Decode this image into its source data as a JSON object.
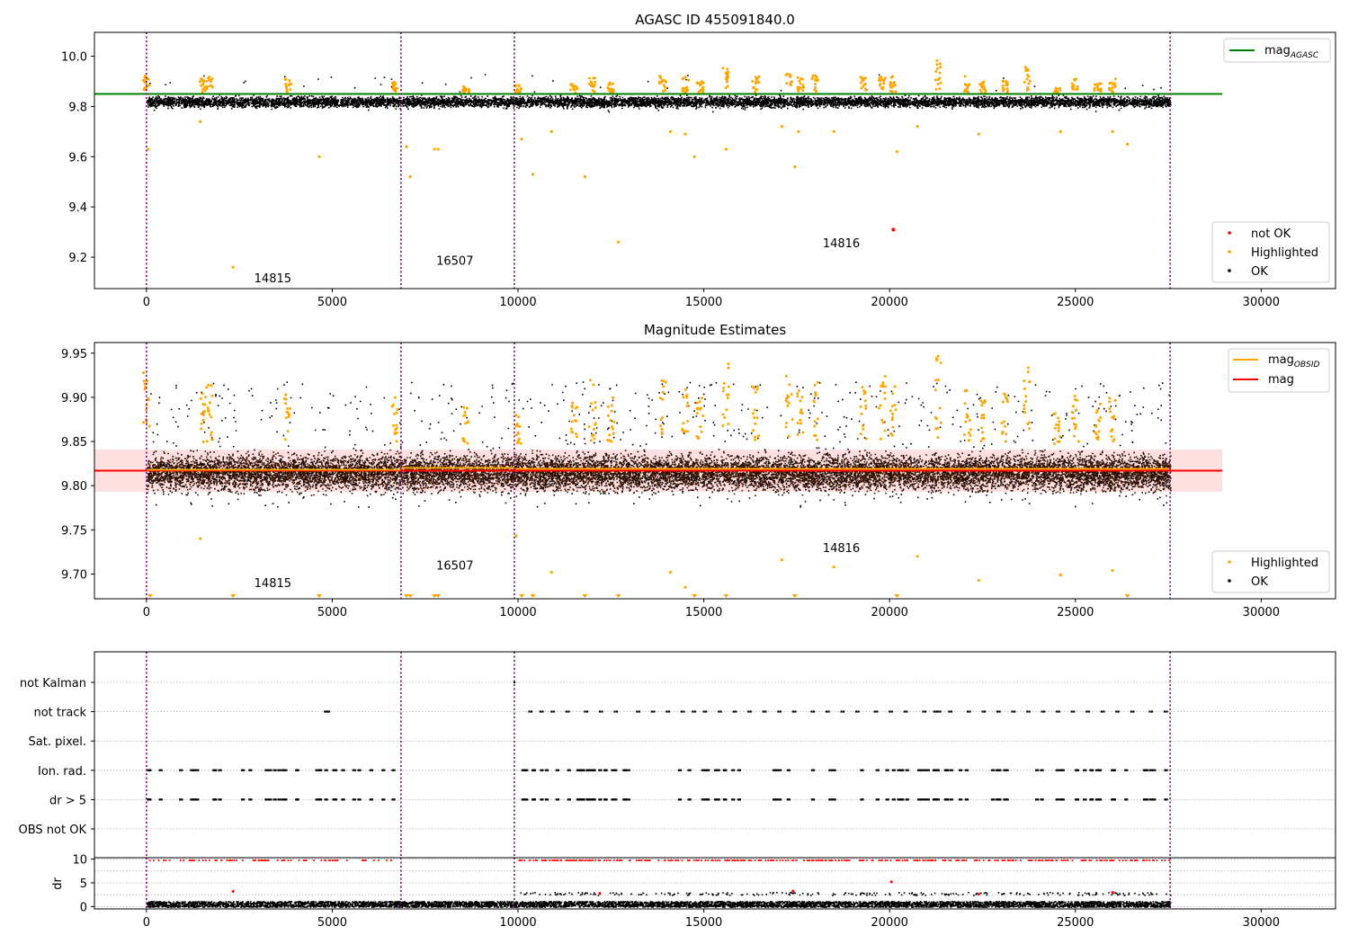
{
  "chart_data": [
    {
      "type": "scatter",
      "title": "AGASC ID 455091840.0",
      "xlim": [
        -1400,
        32000
      ],
      "ylim": [
        9.075,
        10.095
      ],
      "xticks": [
        0,
        5000,
        10000,
        15000,
        20000,
        25000,
        30000
      ],
      "yticks": [
        9.2,
        9.4,
        9.6,
        9.8,
        10.0
      ],
      "ytick_labels": [
        "9.2",
        "9.4",
        "9.6",
        "9.8",
        "10.0"
      ],
      "vlines": [
        0,
        6850,
        9900,
        27550
      ],
      "hline": {
        "y": 9.85,
        "x_range": [
          -1400,
          28950
        ],
        "color": "#008000"
      },
      "legend_upper": [
        {
          "label": "mag",
          "sub": "AGASC",
          "color": "#008000"
        }
      ],
      "legend_lower": [
        {
          "label": "not OK",
          "color": "#ff0000"
        },
        {
          "label": "Highlighted",
          "color": "#ffa500"
        },
        {
          "label": "OK",
          "color": "#000000"
        }
      ],
      "obsid_labels": [
        {
          "text": "14815",
          "x": 2900,
          "y": 9.1
        },
        {
          "text": "16507",
          "x": 7800,
          "y": 9.17
        },
        {
          "text": "14816",
          "x": 18200,
          "y": 9.24
        }
      ],
      "band": {
        "center": 9.82,
        "spread": 0.03
      },
      "red_points": [
        [
          20100,
          9.31
        ]
      ],
      "orange_outliers": [
        [
          50,
          9.63
        ],
        [
          1450,
          9.74
        ],
        [
          2330,
          9.16
        ],
        [
          4650,
          9.6
        ],
        [
          7000,
          9.64
        ],
        [
          7100,
          9.52
        ],
        [
          7750,
          9.63
        ],
        [
          7850,
          9.63
        ],
        [
          10100,
          9.67
        ],
        [
          10400,
          9.53
        ],
        [
          10900,
          9.7
        ],
        [
          11800,
          9.52
        ],
        [
          12700,
          9.26
        ],
        [
          14100,
          9.7
        ],
        [
          14500,
          9.69
        ],
        [
          14750,
          9.6
        ],
        [
          15600,
          9.63
        ],
        [
          17100,
          9.72
        ],
        [
          17450,
          9.56
        ],
        [
          17550,
          9.7
        ],
        [
          18500,
          9.7
        ],
        [
          20200,
          9.62
        ],
        [
          20750,
          9.72
        ],
        [
          22400,
          9.69
        ],
        [
          24600,
          9.7
        ],
        [
          26000,
          9.7
        ],
        [
          26400,
          9.65
        ]
      ],
      "orange_clusters": [
        [
          0,
          9.93
        ],
        [
          1500,
          9.91
        ],
        [
          1700,
          9.92
        ],
        [
          3800,
          9.91
        ],
        [
          6700,
          9.9
        ],
        [
          8600,
          9.88
        ],
        [
          10000,
          9.89
        ],
        [
          11500,
          9.89
        ],
        [
          12000,
          9.92
        ],
        [
          12500,
          9.9
        ],
        [
          13900,
          9.93
        ],
        [
          14500,
          9.92
        ],
        [
          14900,
          9.9
        ],
        [
          15600,
          9.97
        ],
        [
          16400,
          9.92
        ],
        [
          17300,
          9.93
        ],
        [
          17600,
          9.92
        ],
        [
          18000,
          9.93
        ],
        [
          19300,
          9.92
        ],
        [
          19800,
          9.93
        ],
        [
          20100,
          9.92
        ],
        [
          21300,
          9.99
        ],
        [
          22100,
          9.92
        ],
        [
          22500,
          9.9
        ],
        [
          23100,
          9.91
        ],
        [
          23700,
          9.96
        ],
        [
          24500,
          9.88
        ],
        [
          25000,
          9.91
        ],
        [
          25600,
          9.9
        ],
        [
          26000,
          9.91
        ]
      ]
    },
    {
      "type": "scatter",
      "title": "Magnitude Estimates",
      "xlim": [
        -1400,
        32000
      ],
      "ylim": [
        9.672,
        9.962
      ],
      "xticks": [
        0,
        5000,
        10000,
        15000,
        20000,
        25000,
        30000
      ],
      "yticks": [
        9.7,
        9.75,
        9.8,
        9.85,
        9.9,
        9.95
      ],
      "ytick_labels": [
        "9.70",
        "9.75",
        "9.80",
        "9.85",
        "9.90",
        "9.95"
      ],
      "vlines": [
        0,
        6850,
        9900,
        27550
      ],
      "mag_line": {
        "y": 9.817,
        "x_range": [
          -1400,
          28950
        ],
        "color": "#ff0000"
      },
      "mag_band": [
        9.793,
        9.841
      ],
      "obsid_segments": [
        {
          "x_range": [
            0,
            6850
          ],
          "y": 9.818
        },
        {
          "x_range": [
            6850,
            9900
          ],
          "y": 9.82
        },
        {
          "x_range": [
            9900,
            27550
          ],
          "y": 9.819
        }
      ],
      "legend_upper": [
        {
          "label": "mag",
          "sub": "OBSID",
          "color": "#ffa500"
        },
        {
          "label": "mag",
          "sub": "",
          "color": "#ff0000"
        }
      ],
      "legend_lower": [
        {
          "label": "Highlighted",
          "color": "#ffa500"
        },
        {
          "label": "OK",
          "color": "#000000"
        }
      ],
      "obsid_labels": [
        {
          "text": "14815",
          "x": 2900,
          "y": 9.685
        },
        {
          "text": "16507",
          "x": 7800,
          "y": 9.705
        },
        {
          "text": "14816",
          "x": 18200,
          "y": 9.725
        }
      ],
      "band": {
        "center": 9.815,
        "spread": 0.028
      },
      "orange_outliers": [
        [
          1450,
          9.74
        ],
        [
          9950,
          9.743
        ],
        [
          10900,
          9.702
        ],
        [
          14100,
          9.702
        ],
        [
          14500,
          9.685
        ],
        [
          17100,
          9.716
        ],
        [
          18500,
          9.708
        ],
        [
          20750,
          9.72
        ],
        [
          22400,
          9.693
        ],
        [
          24600,
          9.699
        ],
        [
          26000,
          9.704
        ]
      ],
      "bottom_triangles": [
        100,
        2330,
        4650,
        7000,
        7100,
        7750,
        7850,
        10100,
        10400,
        11800,
        12700,
        14750,
        15600,
        17450,
        20200,
        26400
      ],
      "orange_clusters": [
        [
          0,
          9.93
        ],
        [
          1500,
          9.905
        ],
        [
          1700,
          9.915
        ],
        [
          3800,
          9.905
        ],
        [
          6700,
          9.9
        ],
        [
          8600,
          9.89
        ],
        [
          10000,
          9.89
        ],
        [
          11500,
          9.895
        ],
        [
          12000,
          9.92
        ],
        [
          12500,
          9.9
        ],
        [
          13900,
          9.925
        ],
        [
          14500,
          9.91
        ],
        [
          14900,
          9.9
        ],
        [
          15600,
          9.945
        ],
        [
          16400,
          9.92
        ],
        [
          17300,
          9.925
        ],
        [
          17600,
          9.91
        ],
        [
          18000,
          9.92
        ],
        [
          19300,
          9.915
        ],
        [
          19800,
          9.925
        ],
        [
          20100,
          9.915
        ],
        [
          21300,
          9.95
        ],
        [
          22100,
          9.915
        ],
        [
          22500,
          9.9
        ],
        [
          23100,
          9.905
        ],
        [
          23700,
          9.94
        ],
        [
          24500,
          9.885
        ],
        [
          25000,
          9.905
        ],
        [
          25600,
          9.895
        ],
        [
          26000,
          9.905
        ]
      ]
    },
    {
      "type": "scatter",
      "xlim": [
        -1400,
        32000
      ],
      "categories": [
        "not Kalman",
        "not track",
        "Sat. pixel.",
        "Ion. rad.",
        "dr > 5",
        "OBS not OK"
      ],
      "vlines": [
        0,
        6850,
        9900,
        27550
      ],
      "not_kalman_x": [
        9900
      ],
      "not_track_x": [
        4800,
        4850,
        10300,
        10600,
        10900,
        11300,
        11800,
        12200,
        12600,
        13200,
        13600,
        14000,
        14400,
        14700,
        15000,
        15400,
        15800,
        16200,
        16600,
        17000,
        17400,
        17900,
        18300,
        18700,
        19100,
        19600,
        20000,
        20400,
        20900,
        21200,
        21300,
        21600,
        22100,
        22500,
        22900,
        23300,
        23700,
        24100,
        24500,
        24900,
        25300,
        25700,
        26100,
        26500,
        27000,
        27400
      ],
      "ion_rad_clusters": [
        [
          0,
          6850,
          32
        ],
        [
          9900,
          13000,
          30
        ],
        [
          14000,
          27550,
          70
        ]
      ],
      "dr_axis": {
        "ylabel": "dr",
        "ylim": [
          -0.5,
          10.3
        ],
        "yticks": [
          0,
          5,
          10
        ],
        "ytick_labels": [
          "0",
          "5",
          "10"
        ]
      }
    }
  ],
  "xtick_labels": [
    "0",
    "5000",
    "10000",
    "15000",
    "20000",
    "25000",
    "30000"
  ]
}
